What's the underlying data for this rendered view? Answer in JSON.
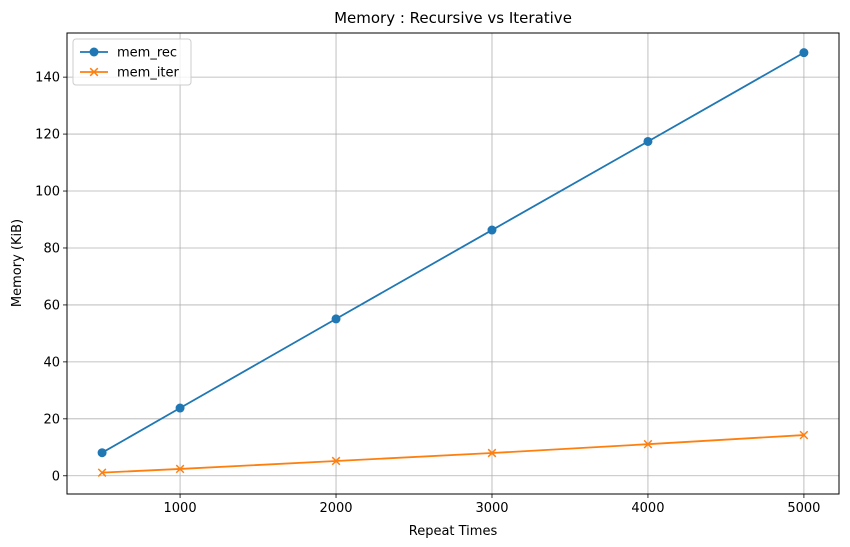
{
  "chart_data": {
    "type": "line",
    "title": "Memory : Recursive vs Iterative",
    "xlabel": "Repeat Times",
    "ylabel": "Memory (KiB)",
    "x": [
      500,
      1000,
      2000,
      3000,
      4000,
      5000
    ],
    "x_ticks": [
      1000,
      2000,
      3000,
      4000,
      5000
    ],
    "y_ticks": [
      0,
      20,
      40,
      60,
      80,
      100,
      120,
      140
    ],
    "xlim": [
      275,
      5225
    ],
    "ylim": [
      -6.4,
      155.5
    ],
    "grid": true,
    "legend_position": "top-left",
    "series": [
      {
        "name": "mem_rec",
        "marker": "circle",
        "color": "#1f77b4",
        "values": [
          8.1,
          23.8,
          55.1,
          86.3,
          117.4,
          148.6
        ]
      },
      {
        "name": "mem_iter",
        "marker": "x",
        "color": "#ff7f0e",
        "values": [
          1.1,
          2.4,
          5.2,
          8.0,
          11.1,
          14.3
        ]
      }
    ]
  }
}
